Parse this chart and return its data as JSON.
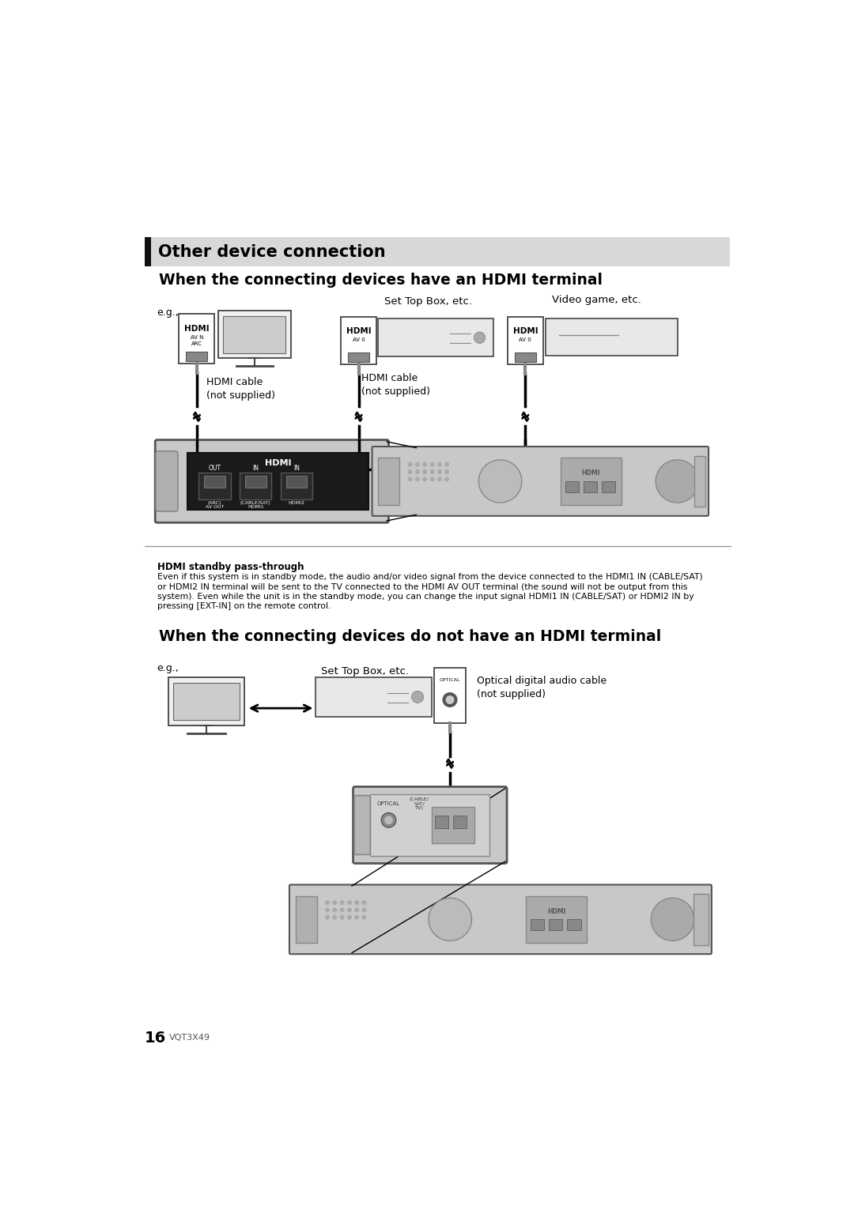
{
  "bg_color": "#ffffff",
  "header_bg": "#d8d8d8",
  "header_bar_color": "#111111",
  "header_text": "Other device connection",
  "section1_title": "When the connecting devices have an HDMI terminal",
  "section2_title": "When the connecting devices do not have an HDMI terminal",
  "eg_label": "e.g.,",
  "label_set_top_box": "Set Top Box, etc.",
  "label_video_game": "Video game, etc.",
  "label_hdmi_cable1": "HDMI cable\n(not supplied)",
  "label_hdmi_cable2": "HDMI cable\n(not supplied)",
  "label_optical": "Optical digital audio cable\n(not supplied)",
  "label_set_top_box2": "Set Top Box, etc.",
  "standby_title": "HDMI standby pass-through",
  "standby_text1": "Even if this system is in standby mode, the audio and/or video signal from the device connected to the HDMI1 IN (CABLE/SAT)",
  "standby_text2": "or HDMI2 IN terminal will be sent to the TV connected to the HDMI AV OUT terminal (the sound will not be output from this",
  "standby_text3": "system). Even while the unit is in the standby mode, you can change the input signal HDMI1 IN (CABLE/SAT) or HDMI2 IN by",
  "standby_text4": "pressing [EXT-IN] on the remote control.",
  "page_number": "16",
  "page_code": "VQT3X49",
  "hdmi_label": "HDMI",
  "av_n_label": "AV N",
  "arc_label": "ARC",
  "av_0_label": "AV 0",
  "out_label": "OUT",
  "in_label": "IN",
  "arc_avout_label": "(ARC)\nAV OUT",
  "cable_sat_hdmi1_label": "(CABLE/SAT)\nHDMI1",
  "hdmi2_label": "HDMI2",
  "optical_label": "OPTICAL",
  "cable_sat_tv_label": "(CABLE/\nSAT/\nTV)"
}
